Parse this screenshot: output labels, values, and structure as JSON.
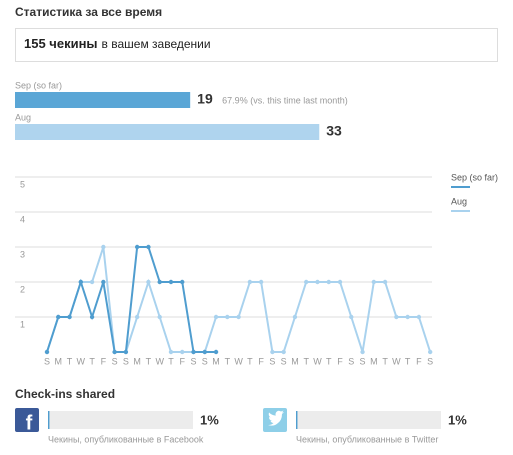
{
  "header": {
    "title": "Статистика за все время"
  },
  "total": {
    "count_text": "155 чекины",
    "suffix": "в вашем заведении"
  },
  "comparison": {
    "bars": [
      {
        "label": "Sep (so far)",
        "value": 19,
        "color": "#5aa6d6",
        "note": "67.9% (vs. this time last month)"
      },
      {
        "label": "Aug",
        "value": 33,
        "color": "#afd4ee"
      }
    ]
  },
  "chart_data": {
    "type": "line",
    "categories": [
      "S",
      "M",
      "T",
      "W",
      "T",
      "F",
      "S",
      "S",
      "M",
      "T",
      "W",
      "T",
      "F",
      "S",
      "S",
      "M",
      "T",
      "W",
      "T",
      "F",
      "S",
      "S",
      "M",
      "T",
      "W",
      "T",
      "F",
      "S",
      "S",
      "M",
      "T",
      "W",
      "T",
      "F",
      "S"
    ],
    "series": [
      {
        "name": "Sep (so far)",
        "color": "#4f9dcf",
        "values": [
          0,
          1,
          1,
          2,
          1,
          2,
          0,
          0,
          3,
          3,
          2,
          2,
          2,
          0,
          0,
          0,
          null,
          null,
          null,
          null,
          null,
          null,
          null,
          null,
          null,
          null,
          null,
          null,
          null,
          null,
          null,
          null,
          null,
          null,
          null
        ]
      },
      {
        "name": "Aug",
        "color": "#a9d2ee",
        "values": [
          0,
          1,
          1,
          2,
          2,
          3,
          0,
          0,
          1,
          2,
          1,
          0,
          0,
          0,
          0,
          1,
          1,
          1,
          2,
          2,
          0,
          0,
          1,
          2,
          2,
          2,
          2,
          1,
          0,
          2,
          2,
          1,
          1,
          1,
          0
        ]
      }
    ],
    "ylim": [
      0,
      5
    ],
    "yticks": [
      1,
      2,
      3,
      4,
      5
    ],
    "grid": true,
    "legend": "right"
  },
  "shared": {
    "title": "Check-ins shared",
    "items": [
      {
        "network": "facebook",
        "value": 1,
        "value_label": "1%",
        "caption": "Чекины, опубликованные в Facebook"
      },
      {
        "network": "twitter",
        "value": 1,
        "value_label": "1%",
        "caption": "Чекины, опубликованные в Twitter"
      }
    ]
  }
}
